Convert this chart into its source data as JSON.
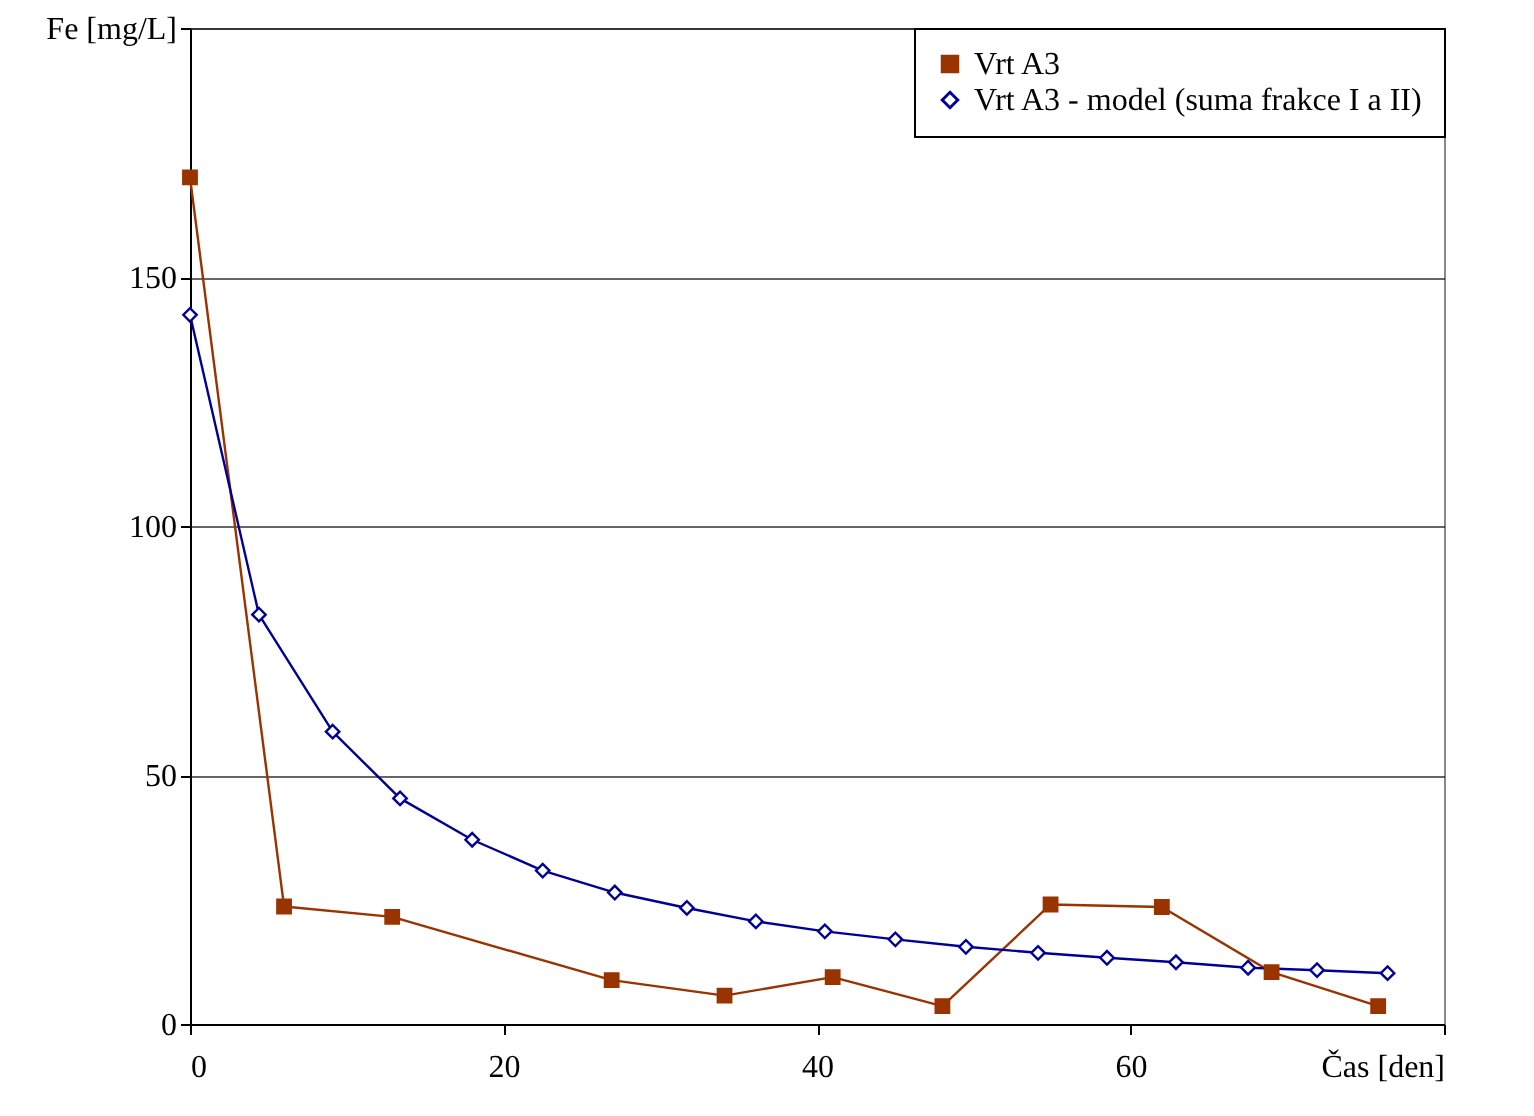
{
  "chart_data": {
    "type": "line",
    "xlim": [
      0,
      80
    ],
    "xticks": [
      0,
      20,
      40,
      60,
      {
        "value": 80,
        "label": "Čas [den]"
      }
    ],
    "ylim": [
      0,
      200
    ],
    "yticks": [
      0,
      50,
      100,
      150,
      {
        "value": 200,
        "label": "Fe [mg/L]"
      }
    ],
    "grid": "y",
    "legend": "top right",
    "series": [
      {
        "name": "Vrt A3",
        "color": "#993300",
        "marker": "square",
        "x": [
          0,
          6.0,
          12.9,
          26.9,
          34.1,
          41.0,
          48.0,
          54.9,
          62.0,
          69.0,
          75.8
        ],
        "values": [
          170,
          23.6,
          21.5,
          8.8,
          5.7,
          9.4,
          3.6,
          24.0,
          23.5,
          10.4,
          3.6
        ]
      },
      {
        "name": "Vrt A3 - model (suma frakce I a II)",
        "color": "#000099",
        "marker": "diamond",
        "x": [
          0,
          4.4,
          9.1,
          13.4,
          18.0,
          22.5,
          27.1,
          31.7,
          36.1,
          40.5,
          45.0,
          49.5,
          54.1,
          58.5,
          62.9,
          67.5,
          71.9,
          76.4
        ],
        "values": [
          142.4,
          82.2,
          58.7,
          45.3,
          37.0,
          30.8,
          26.4,
          23.3,
          20.6,
          18.6,
          17.0,
          15.5,
          14.3,
          13.3,
          12.4,
          11.3,
          10.8,
          10.2
        ]
      }
    ]
  }
}
